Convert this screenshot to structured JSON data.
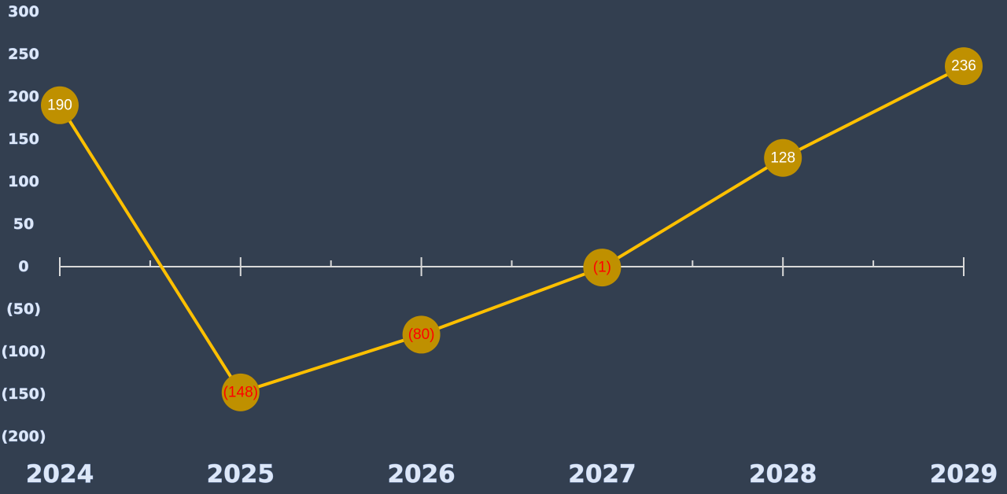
{
  "chart_data": {
    "type": "line",
    "categories": [
      "2024",
      "2025",
      "2026",
      "2027",
      "2028",
      "2029"
    ],
    "series": [
      {
        "values": [
          190,
          -148,
          -80,
          -1,
          128,
          236
        ],
        "data_labels": [
          "190",
          "(148)",
          "(80)",
          "(1)",
          "128",
          "236"
        ]
      }
    ],
    "ylim": [
      -200,
      300
    ],
    "y_ticks": [
      300,
      250,
      200,
      150,
      100,
      50,
      0,
      -50,
      -100,
      -150,
      -200
    ],
    "y_tick_labels": [
      "300",
      "250",
      "200",
      "150",
      "100",
      "50",
      "0",
      "(50)",
      "(100)",
      "(150)",
      "(200)"
    ],
    "title": "",
    "xlabel": "",
    "ylabel": "",
    "grid": false,
    "legend": "none",
    "colors": {
      "background": "#333f50",
      "line": "#ffc000",
      "marker": "#bf9000",
      "axis": "#d9d9d9",
      "positive_label": "#ffffff",
      "negative_label": "#ff0000"
    }
  }
}
